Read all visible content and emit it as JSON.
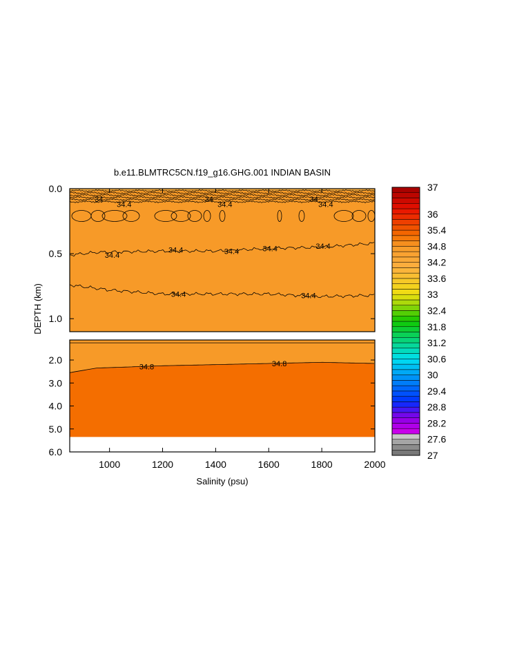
{
  "chart_data": {
    "type": "heatmap",
    "title": "b.e11.BLMTRC5CN.f19_g16.GHG.001 INDIAN BASIN",
    "xlabel": "Salinity (psu)",
    "ylabel": "DEPTH (km)",
    "xlim": [
      850,
      2000
    ],
    "x_ticks": [
      1000,
      1200,
      1400,
      1600,
      1800,
      2000
    ],
    "x_tick_labels": [
      "1000",
      "1200",
      "1400",
      "1600",
      "1800",
      "2000"
    ],
    "panels": [
      {
        "name": "upper",
        "ylim": [
          0.0,
          1.1
        ],
        "y_ticks": [
          0.0,
          0.5,
          1.0
        ],
        "y_tick_labels": [
          "0.0",
          "0.5",
          "1.0"
        ],
        "fill_bands": [
          {
            "from_depth": 0.0,
            "to_depth": 0.015,
            "level": 33.6
          },
          {
            "from_depth": 0.015,
            "to_depth": 0.13,
            "level": 34.2
          },
          {
            "from_depth": 0.13,
            "to_depth": 1.1,
            "level": 34.2
          }
        ],
        "contours": [
          {
            "level": 34.0,
            "depth_at": {
              "x": [
                850,
                2000
              ],
              "d": [
                0.07,
                0.07
              ]
            }
          },
          {
            "level": 34.4,
            "depth_at": {
              "x": [
                850,
                950,
                1200,
                1400,
                1600,
                1800,
                2000
              ],
              "d": [
                0.51,
                0.49,
                0.48,
                0.48,
                0.46,
                0.45,
                0.42
              ]
            }
          },
          {
            "level": 34.4,
            "depth_at": {
              "x": [
                850,
                1000,
                1200,
                1400,
                1600,
                1800,
                2000
              ],
              "d": [
                0.74,
                0.78,
                0.81,
                0.81,
                0.81,
                0.83,
                0.82
              ]
            }
          }
        ],
        "contour_labels": [
          {
            "text": "34",
            "x": 960,
            "d": 0.08
          },
          {
            "text": "34.4",
            "x": 1055,
            "d": 0.12
          },
          {
            "text": "34",
            "x": 1375,
            "d": 0.08
          },
          {
            "text": "34.4",
            "x": 1435,
            "d": 0.12
          },
          {
            "text": "34",
            "x": 1770,
            "d": 0.08
          },
          {
            "text": "34.4",
            "x": 1815,
            "d": 0.12
          },
          {
            "text": "34.4",
            "x": 1010,
            "d": 0.51
          },
          {
            "text": "34.4",
            "x": 1250,
            "d": 0.47
          },
          {
            "text": "34.4",
            "x": 1460,
            "d": 0.48
          },
          {
            "text": "34.4",
            "x": 1605,
            "d": 0.46
          },
          {
            "text": "34.4",
            "x": 1805,
            "d": 0.44
          },
          {
            "text": "34.4",
            "x": 1260,
            "d": 0.81
          },
          {
            "text": "34.4",
            "x": 1750,
            "d": 0.82
          }
        ]
      },
      {
        "name": "lower",
        "ylim": [
          1.1,
          6.0
        ],
        "y_ticks": [
          2.0,
          3.0,
          4.0,
          5.0,
          6.0
        ],
        "y_tick_labels": [
          "2.0",
          "3.0",
          "4.0",
          "5.0",
          "6.0"
        ],
        "no_data_below_depth": 5.35,
        "fill_bands": [
          {
            "above_contour": true,
            "level": 34.4
          },
          {
            "below_contour": true,
            "level": 34.8
          }
        ],
        "contours": [
          {
            "level": 34.4,
            "depth_at": {
              "x": [
                850,
                2000
              ],
              "d": [
                1.25,
                1.25
              ]
            }
          },
          {
            "level": 34.8,
            "depth_at": {
              "x": [
                850,
                950,
                1200,
                1400,
                1600,
                1800,
                2000
              ],
              "d": [
                2.55,
                2.35,
                2.25,
                2.2,
                2.15,
                2.1,
                2.15
              ]
            }
          }
        ],
        "contour_labels": [
          {
            "text": "34.8",
            "x": 1140,
            "d": 2.28
          },
          {
            "text": "34.8",
            "x": 1640,
            "d": 2.15
          }
        ]
      }
    ],
    "colorbar": {
      "min": 27,
      "max": 37,
      "step": 0.2,
      "tick_labels": [
        "37",
        "36",
        "35.4",
        "34.8",
        "34.2",
        "33.6",
        "33",
        "32.4",
        "31.8",
        "31.2",
        "30.6",
        "30",
        "29.4",
        "28.8",
        "28.2",
        "27.6",
        "27"
      ],
      "tick_values": [
        37,
        36,
        35.4,
        34.8,
        34.2,
        33.6,
        33,
        32.4,
        31.8,
        31.2,
        30.6,
        30,
        29.4,
        28.8,
        28.2,
        27.6,
        27
      ],
      "colors": {
        "greys": [
          "#787878",
          "#8c8c8c",
          "#a5a5a5",
          "#c8c8c8"
        ],
        "magenta": "#ee00ee",
        "purple": "#8a00e6",
        "blue": "#0030ff",
        "cyan": "#00e0f0",
        "green": "#10c800",
        "yellow": "#f0e010",
        "orange_light": "#fbb040",
        "orange_mid": "#f79a28",
        "orange_dark": "#f46e00",
        "red": "#e81000",
        "dark_red": "#a00000"
      }
    }
  }
}
